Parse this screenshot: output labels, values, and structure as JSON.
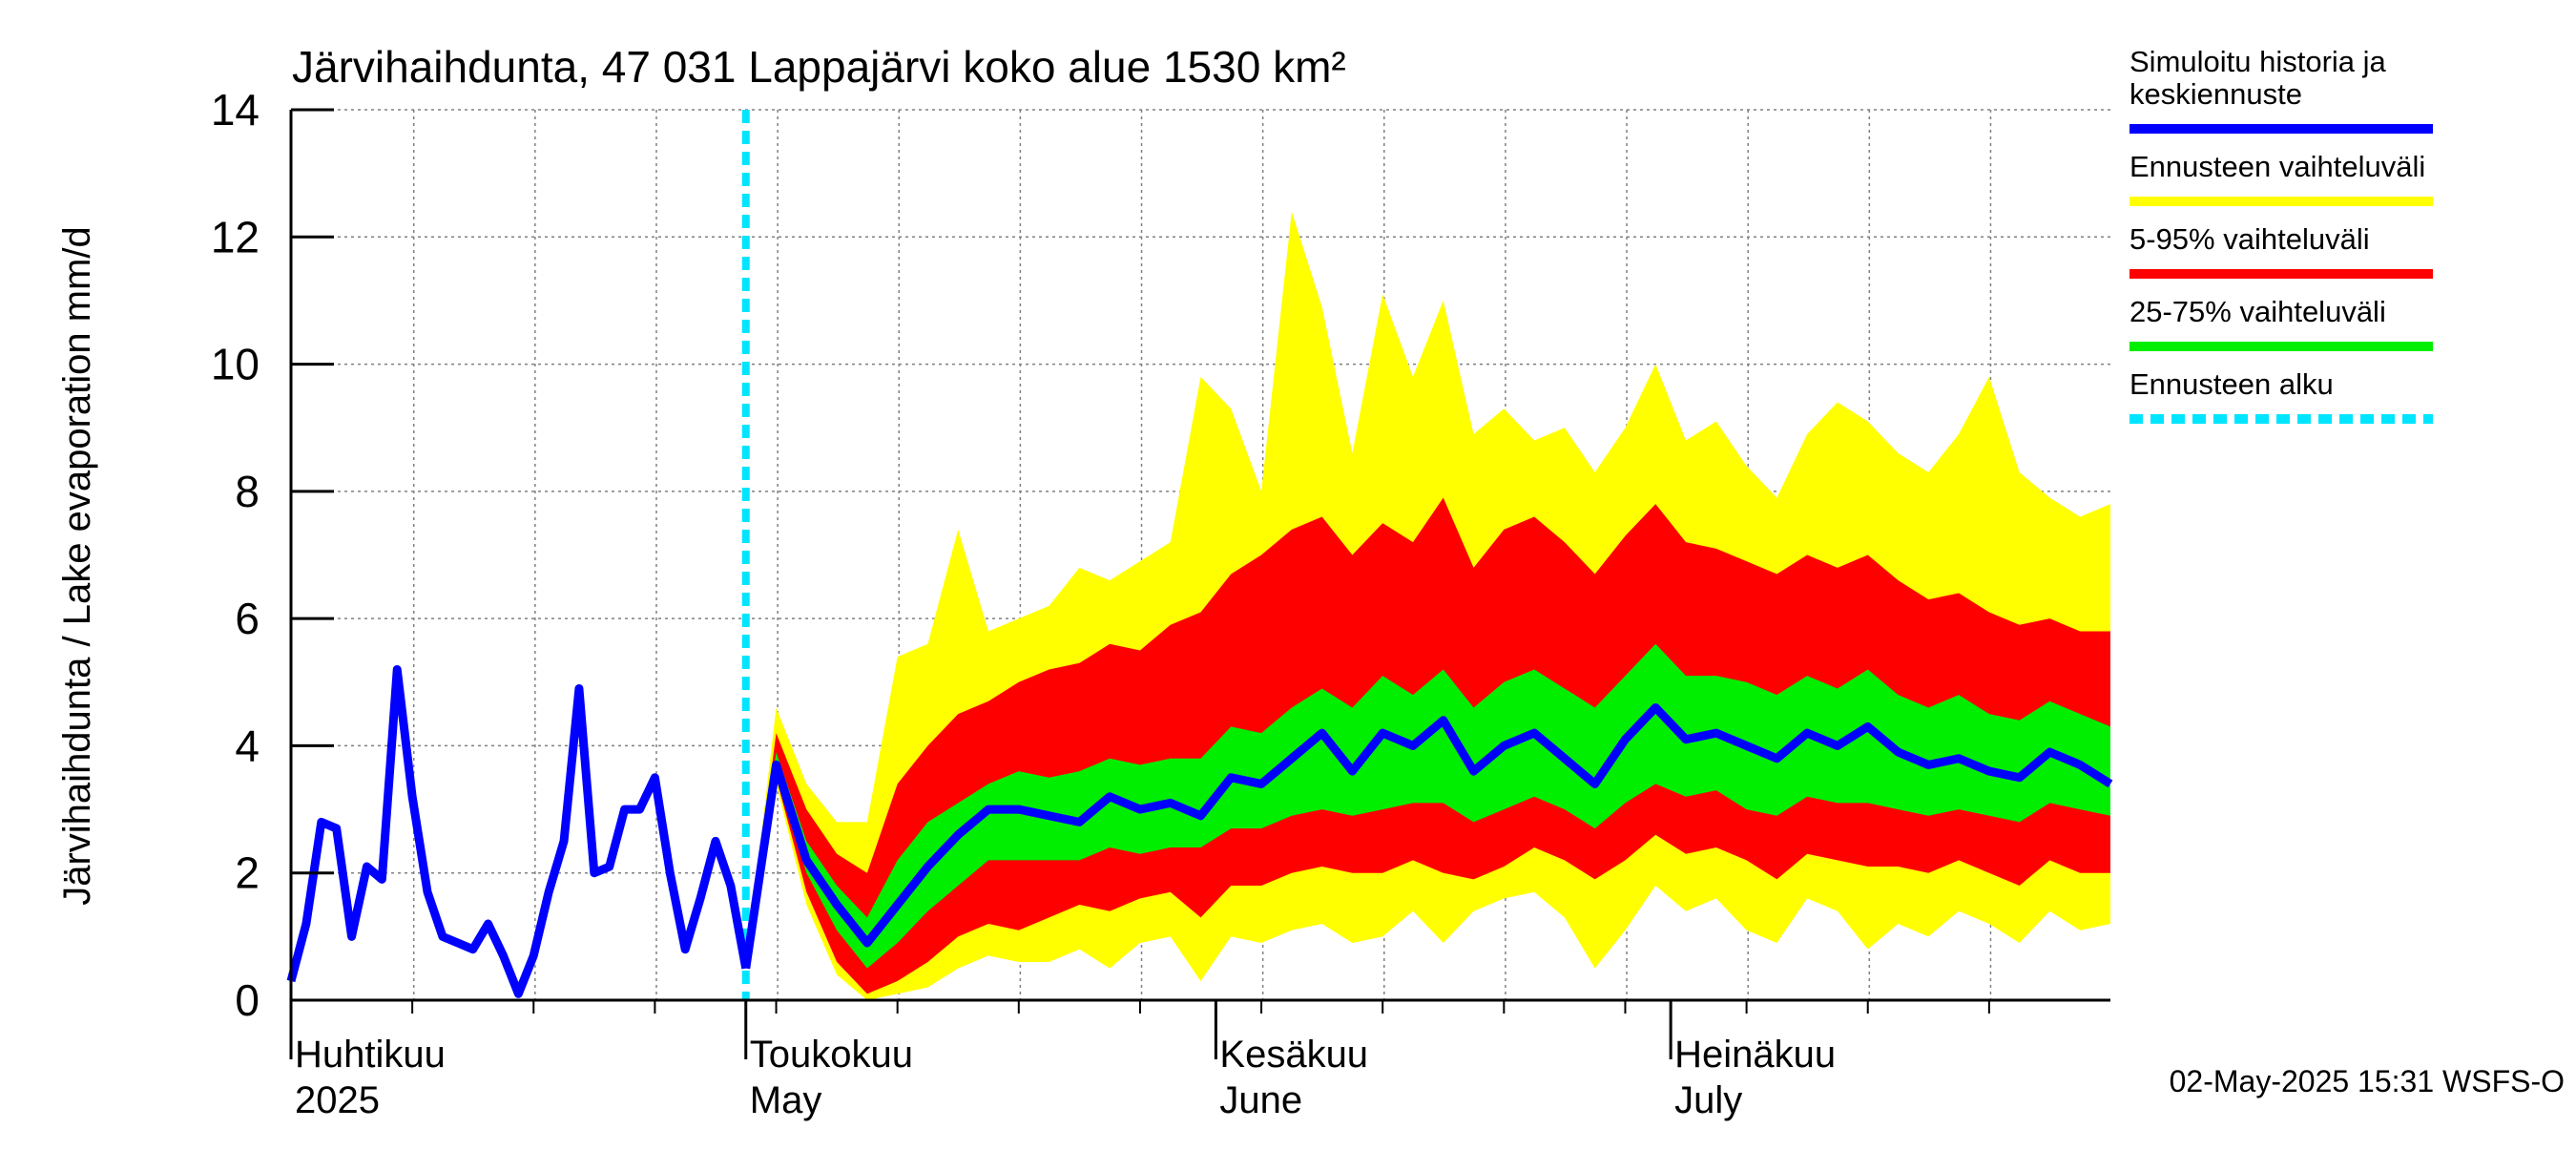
{
  "chart_data": {
    "type": "area",
    "title": "Järvihaihdunta, 47 031 Lappajärvi koko alue 1530 km²",
    "ylabel": "Järvihaihdunta / Lake evaporation   mm/d",
    "footer": "02-May-2025 15:31 WSFS-O",
    "ylim": [
      0,
      14
    ],
    "yticks": [
      0,
      2,
      4,
      6,
      8,
      10,
      12,
      14
    ],
    "xlim": [
      0,
      120
    ],
    "month_labels": [
      {
        "line1": "Huhtikuu",
        "line2": "2025",
        "day": 0
      },
      {
        "line1": "Toukokuu",
        "line2": "May",
        "day": 30
      },
      {
        "line1": "Kesäkuu",
        "line2": "June",
        "day": 61
      },
      {
        "line1": "Heinäkuu",
        "line2": "July",
        "day": 91
      }
    ],
    "forecast_start_day": 30,
    "grid": true,
    "legend": [
      {
        "label_lines": [
          "Simuloitu historia ja",
          "keskiennuste"
        ],
        "color": "#0000ff",
        "style": "solid"
      },
      {
        "label_lines": [
          "Ennusteen vaihteluväli"
        ],
        "color": "#ffff00",
        "style": "solid"
      },
      {
        "label_lines": [
          "5-95% vaihteluväli"
        ],
        "color": "#ff0000",
        "style": "solid"
      },
      {
        "label_lines": [
          "25-75% vaihteluväli"
        ],
        "color": "#00ee00",
        "style": "solid"
      },
      {
        "label_lines": [
          "Ennusteen alku"
        ],
        "color": "#00e5ff",
        "style": "dashed"
      }
    ],
    "colors": {
      "history": "#0000ff",
      "range": "#ffff00",
      "p5_95": "#ff0000",
      "p25_75": "#00ee00",
      "forecast_start": "#00e5ff"
    },
    "history": {
      "x": [
        0,
        1,
        2,
        3,
        4,
        5,
        6,
        7,
        8,
        9,
        10,
        11,
        12,
        13,
        14,
        15,
        16,
        17,
        18,
        19,
        20,
        21,
        22,
        23,
        24,
        25,
        26,
        27,
        28,
        29,
        30
      ],
      "y": [
        0.3,
        1.2,
        2.8,
        2.7,
        1.0,
        2.1,
        1.9,
        5.2,
        3.2,
        1.7,
        1.0,
        0.9,
        0.8,
        1.2,
        0.7,
        0.1,
        0.7,
        1.7,
        2.5,
        4.9,
        2.0,
        2.1,
        3.0,
        3.0,
        3.5,
        2.0,
        0.8,
        1.6,
        2.5,
        1.8,
        0.5
      ]
    },
    "forecast": {
      "x": [
        30,
        32,
        34,
        36,
        38,
        40,
        42,
        44,
        46,
        48,
        50,
        52,
        54,
        56,
        58,
        60,
        62,
        64,
        66,
        68,
        70,
        72,
        74,
        76,
        78,
        80,
        82,
        84,
        86,
        88,
        90,
        92,
        94,
        96,
        98,
        100,
        102,
        104,
        106,
        108,
        110,
        112,
        114,
        116,
        118,
        120
      ],
      "mean": [
        0.5,
        3.7,
        2.2,
        1.5,
        0.9,
        1.5,
        2.1,
        2.6,
        3.0,
        3.0,
        2.9,
        2.8,
        3.2,
        3.0,
        3.1,
        2.9,
        3.5,
        3.4,
        3.8,
        4.2,
        3.6,
        4.2,
        4.0,
        4.4,
        3.6,
        4.0,
        4.2,
        3.8,
        3.4,
        4.1,
        4.6,
        4.1,
        4.2,
        4.0,
        3.8,
        4.2,
        4.0,
        4.3,
        3.9,
        3.7,
        3.8,
        3.6,
        3.5,
        3.9,
        3.7,
        3.4
      ],
      "min": [
        0.5,
        3.4,
        1.5,
        0.4,
        0.0,
        0.1,
        0.2,
        0.5,
        0.7,
        0.6,
        0.6,
        0.8,
        0.5,
        0.9,
        1.0,
        0.3,
        1.0,
        0.9,
        1.1,
        1.2,
        0.9,
        1.0,
        1.4,
        0.9,
        1.4,
        1.6,
        1.7,
        1.3,
        0.5,
        1.1,
        1.8,
        1.4,
        1.6,
        1.1,
        0.9,
        1.6,
        1.4,
        0.8,
        1.2,
        1.0,
        1.4,
        1.2,
        0.9,
        1.4,
        1.1,
        1.2
      ],
      "p5": [
        0.5,
        3.5,
        1.7,
        0.6,
        0.1,
        0.3,
        0.6,
        1.0,
        1.2,
        1.1,
        1.3,
        1.5,
        1.4,
        1.6,
        1.7,
        1.3,
        1.8,
        1.8,
        2.0,
        2.1,
        2.0,
        2.0,
        2.2,
        2.0,
        1.9,
        2.1,
        2.4,
        2.2,
        1.9,
        2.2,
        2.6,
        2.3,
        2.4,
        2.2,
        1.9,
        2.3,
        2.2,
        2.1,
        2.1,
        2.0,
        2.2,
        2.0,
        1.8,
        2.2,
        2.0,
        2.0
      ],
      "p25": [
        0.5,
        3.6,
        2.0,
        1.1,
        0.5,
        0.9,
        1.4,
        1.8,
        2.2,
        2.2,
        2.2,
        2.2,
        2.4,
        2.3,
        2.4,
        2.4,
        2.7,
        2.7,
        2.9,
        3.0,
        2.9,
        3.0,
        3.1,
        3.1,
        2.8,
        3.0,
        3.2,
        3.0,
        2.7,
        3.1,
        3.4,
        3.2,
        3.3,
        3.0,
        2.9,
        3.2,
        3.1,
        3.1,
        3.0,
        2.9,
        3.0,
        2.9,
        2.8,
        3.1,
        3.0,
        2.9
      ],
      "p75": [
        0.5,
        3.9,
        2.5,
        1.8,
        1.3,
        2.2,
        2.8,
        3.1,
        3.4,
        3.6,
        3.5,
        3.6,
        3.8,
        3.7,
        3.8,
        3.8,
        4.3,
        4.2,
        4.6,
        4.9,
        4.6,
        5.1,
        4.8,
        5.2,
        4.6,
        5.0,
        5.2,
        4.9,
        4.6,
        5.1,
        5.6,
        5.1,
        5.1,
        5.0,
        4.8,
        5.1,
        4.9,
        5.2,
        4.8,
        4.6,
        4.8,
        4.5,
        4.4,
        4.7,
        4.5,
        4.3
      ],
      "p95": [
        0.5,
        4.2,
        3.0,
        2.3,
        2.0,
        3.4,
        4.0,
        4.5,
        4.7,
        5.0,
        5.2,
        5.3,
        5.6,
        5.5,
        5.9,
        6.1,
        6.7,
        7.0,
        7.4,
        7.6,
        7.0,
        7.5,
        7.2,
        7.9,
        6.8,
        7.4,
        7.6,
        7.2,
        6.7,
        7.3,
        7.8,
        7.2,
        7.1,
        6.9,
        6.7,
        7.0,
        6.8,
        7.0,
        6.6,
        6.3,
        6.4,
        6.1,
        5.9,
        6.0,
        5.8,
        5.8
      ],
      "max": [
        0.5,
        4.6,
        3.4,
        2.8,
        2.8,
        5.4,
        5.6,
        7.4,
        5.8,
        6.0,
        6.2,
        6.8,
        6.6,
        6.9,
        7.2,
        9.8,
        9.3,
        8.0,
        12.4,
        10.9,
        8.6,
        11.1,
        9.8,
        11.0,
        8.9,
        9.3,
        8.8,
        9.0,
        8.3,
        9.0,
        10.0,
        8.8,
        9.1,
        8.4,
        7.9,
        8.9,
        9.4,
        9.1,
        8.6,
        8.3,
        8.9,
        9.8,
        8.3,
        7.9,
        7.6,
        7.8
      ]
    }
  }
}
